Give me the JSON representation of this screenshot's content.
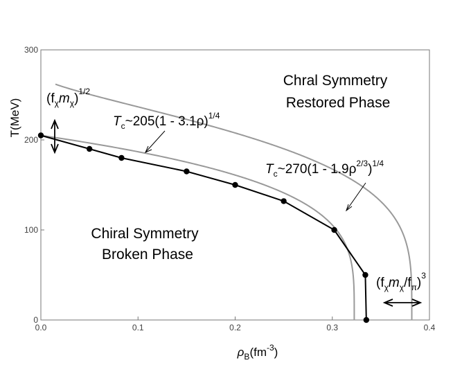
{
  "chart_data": {
    "type": "line",
    "xlabel": "ρ",
    "xlabel_sub": "B",
    "xlabel_unit_open": "(fm",
    "xlabel_unit_exp": "-3",
    "xlabel_unit_close": ")",
    "ylabel": "T(MeV)",
    "xlim": [
      0,
      0.4
    ],
    "ylim": [
      0,
      300
    ],
    "x_ticks": [
      "0.0",
      "0.1",
      "0.2",
      "0.3",
      "0.4"
    ],
    "y_ticks": [
      "0",
      "100",
      "200",
      "300"
    ],
    "x_tick_values": [
      0,
      0.1,
      0.2,
      0.3,
      0.4
    ],
    "y_tick_values": [
      0,
      100,
      200,
      300
    ],
    "grid": false,
    "series": [
      {
        "color": "#000000",
        "marker": "circle",
        "x": [
          0.0,
          0.05,
          0.083,
          0.15,
          0.2,
          0.25,
          0.302,
          0.334,
          0.335
        ],
        "y": [
          205,
          190,
          180,
          165,
          150,
          132,
          100,
          50,
          0
        ]
      },
      {
        "color": "#999999",
        "formula": "Tc=205(1-3.1rho)^0.25"
      },
      {
        "color": "#999999",
        "formula": "Tc=270(1-1.9rho^(2/3))^0.25"
      }
    ],
    "annotations": {
      "restored": [
        "Chral Symmetry",
        "Restored Phase"
      ],
      "broken": [
        "Chiral Symmetry",
        "Broken Phase"
      ],
      "fit1": {
        "T": "T",
        "c": "c",
        "body": "~205(1 - 3.1ρ)",
        "exp": "1/4"
      },
      "fit2": {
        "T": "T",
        "c": "c",
        "body1": "~270(1 - 1.9ρ",
        "exp_inner": "2/3",
        "body2": ")",
        "exp": "1/4"
      },
      "err_y": {
        "open": "(f",
        "s1": "χ",
        "m": "m",
        "s2": "χ",
        "close": ")",
        "exp": "1/2"
      },
      "err_x": {
        "open": "(f",
        "s1": "χ",
        "m": "m",
        "s2": "χ",
        "slash": "/f",
        "s3": "π",
        "close": ")",
        "exp": "3"
      }
    }
  }
}
